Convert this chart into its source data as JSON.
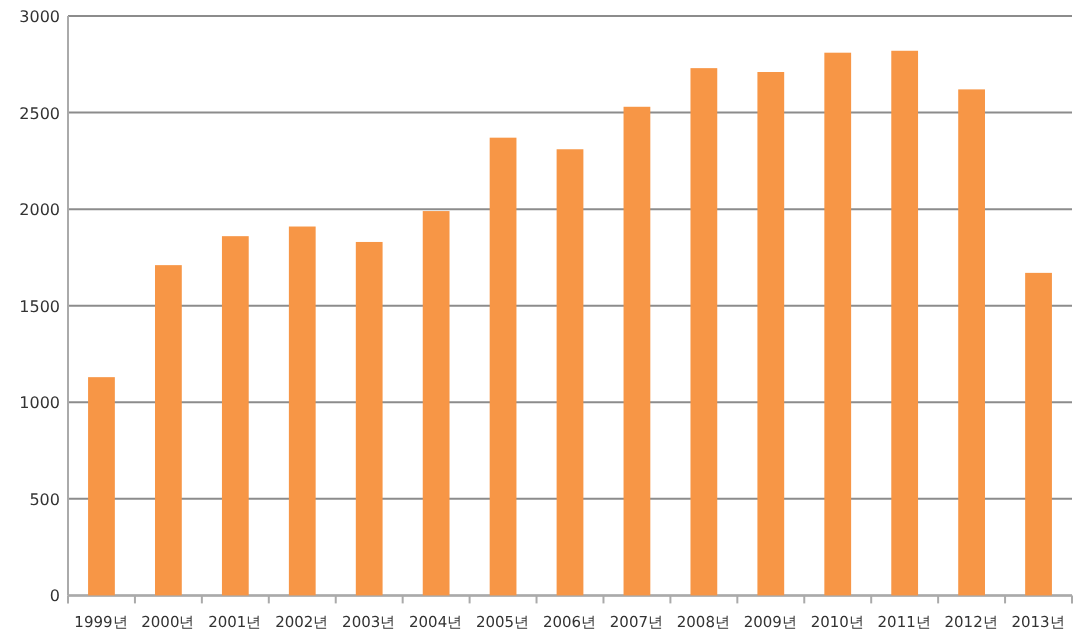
{
  "chart_data": {
    "type": "bar",
    "categories": [
      "1999년",
      "2000년",
      "2001년",
      "2002년",
      "2003년",
      "2004년",
      "2005년",
      "2006년",
      "2007년",
      "2008년",
      "2009년",
      "2010년",
      "2011년",
      "2012년",
      "2013년"
    ],
    "values": [
      1130,
      1710,
      1860,
      1910,
      1830,
      1990,
      2370,
      2310,
      2530,
      2730,
      2710,
      2810,
      2820,
      2620,
      1670
    ],
    "color": "#f79646",
    "ylim": [
      0,
      3000
    ],
    "yticks": [
      0,
      500,
      1000,
      1500,
      2000,
      2500,
      3000
    ],
    "grid": "y"
  }
}
